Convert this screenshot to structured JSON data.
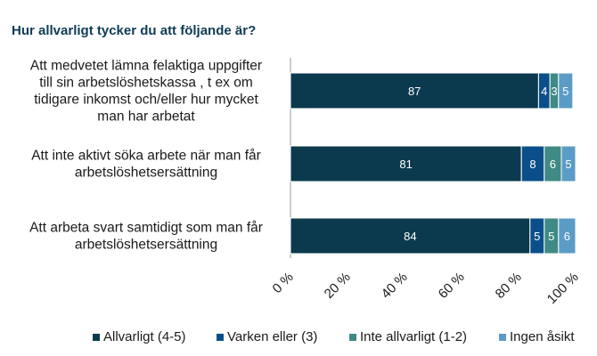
{
  "chart_data": {
    "type": "bar",
    "orientation": "horizontal",
    "stacked": true,
    "title": "Hur allvarligt tycker du att följande är?",
    "categories": [
      [
        "Att medvetet lämna felaktiga uppgifter",
        "till sin arbetslöshetskassa , t ex om",
        "tidigare inkomst och/eller hur mycket",
        "man har arbetat"
      ],
      [
        "Att inte aktivt söka arbete när man får",
        "arbetslöshetsersättning"
      ],
      [
        "Att arbeta svart samtidigt som man får",
        "arbetslöshetsersättning"
      ]
    ],
    "series": [
      {
        "name": "Allvarligt (4-5)",
        "color": "#0b3a4e",
        "values": [
          87,
          81,
          84
        ]
      },
      {
        "name": "Varken eller (3)",
        "color": "#0b4f8a",
        "values": [
          4,
          8,
          5
        ]
      },
      {
        "name": "Inte allvarligt (1-2)",
        "color": "#3f8a84",
        "values": [
          3,
          6,
          5
        ]
      },
      {
        "name": "Ingen åsikt",
        "color": "#5b9cc6",
        "values": [
          5,
          5,
          6
        ]
      }
    ],
    "xlim": [
      0,
      100
    ],
    "xticks": [
      0,
      20,
      40,
      60,
      80,
      100
    ],
    "xtick_labels": [
      "0 %",
      "20 %",
      "40 %",
      "60 %",
      "80 %",
      "100 %"
    ],
    "legend_position": "bottom",
    "grid": false
  }
}
